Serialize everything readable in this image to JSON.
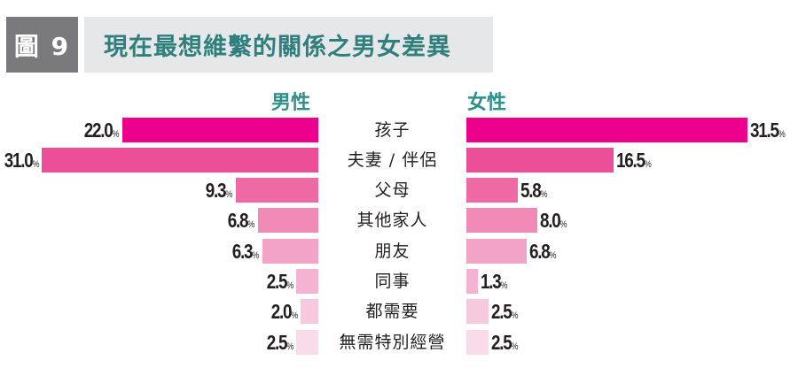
{
  "header": {
    "figure_label": "圖 9",
    "title": "現在最想維繫的關係之男女差異"
  },
  "legend": {
    "male": "男性",
    "female": "女性"
  },
  "colors": {
    "title_text": "#2f7f7c",
    "badge_bg": "#7a7a7c",
    "title_bg": "#e6e7e8",
    "row_colors": [
      "#ec008c",
      "#ec4f98",
      "#ef69a4",
      "#f18ab7",
      "#f3a3c6",
      "#f4b3d1",
      "#f7c9df",
      "#fadbe9"
    ]
  },
  "rows": [
    {
      "category": "孩子",
      "male": "22.0",
      "female": "31.5",
      "pct": "%"
    },
    {
      "category": "夫妻 / 伴侶",
      "male": "31.0",
      "female": "16.5",
      "pct": "%"
    },
    {
      "category": "父母",
      "male": "9.3",
      "female": "5.8",
      "pct": "%"
    },
    {
      "category": "其他家人",
      "male": "6.8",
      "female": "8.0",
      "pct": "%"
    },
    {
      "category": "朋友",
      "male": "6.3",
      "female": "6.8",
      "pct": "%"
    },
    {
      "category": "同事",
      "male": "2.5",
      "female": "1.3",
      "pct": "%"
    },
    {
      "category": "都需要",
      "male": "2.0",
      "female": "2.5",
      "pct": "%"
    },
    {
      "category": "無需特別經營",
      "male": "2.5",
      "female": "2.5",
      "pct": "%"
    }
  ],
  "chart_data": {
    "type": "bar",
    "orientation": "horizontal-butterfly",
    "title": "圖 9 現在最想維繫的關係之男女差異",
    "categories": [
      "孩子",
      "夫妻 / 伴侶",
      "父母",
      "其他家人",
      "朋友",
      "同事",
      "都需要",
      "無需特別經營"
    ],
    "series": [
      {
        "name": "男性",
        "values": [
          22.0,
          31.0,
          9.3,
          6.8,
          6.3,
          2.5,
          2.0,
          2.5
        ]
      },
      {
        "name": "女性",
        "values": [
          31.5,
          16.5,
          5.8,
          8.0,
          6.8,
          1.3,
          2.5,
          2.5
        ]
      }
    ],
    "unit": "%",
    "xlabel": "",
    "ylabel": "",
    "grid": false,
    "legend_position": "top (series labels above each side)"
  }
}
